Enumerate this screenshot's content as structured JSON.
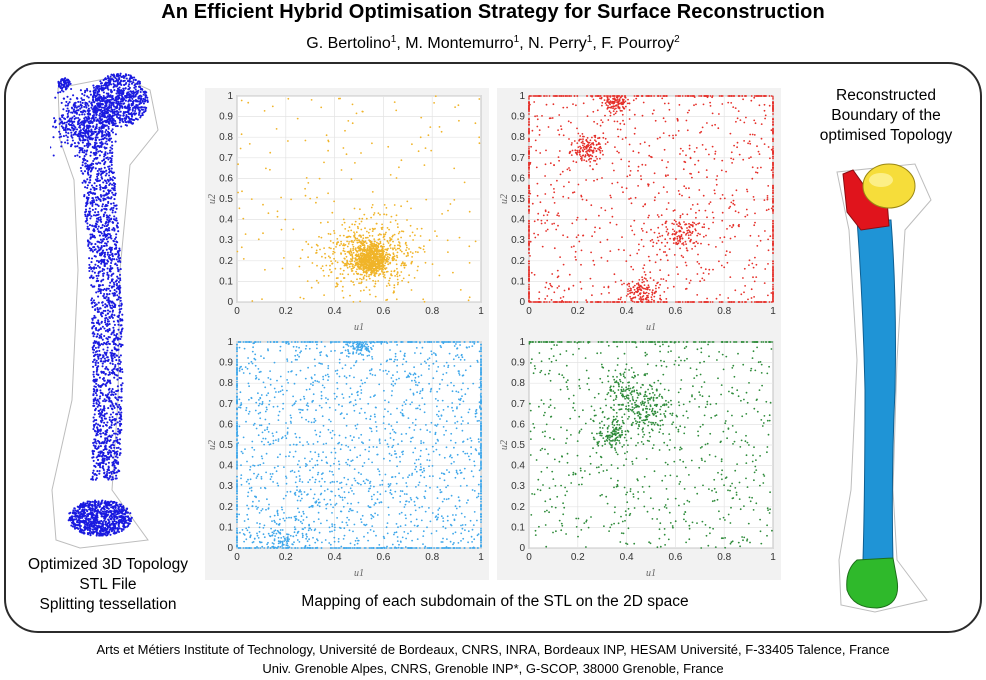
{
  "header": {
    "title": "An Efficient Hybrid Optimisation Strategy for Surface Reconstruction",
    "authors": [
      {
        "name": "G. Bertolino",
        "aff": "1"
      },
      {
        "name": "M. Montemurro",
        "aff": "1"
      },
      {
        "name": "N. Perry",
        "aff": "1"
      },
      {
        "name": "F. Pourroy",
        "aff": "2"
      }
    ]
  },
  "captions": {
    "left": [
      "Optimized 3D Topology",
      "STL File",
      "Splitting tessellation"
    ],
    "middle": "Mapping of each subdomain of the STL on the 2D space",
    "right": [
      "Reconstructed",
      "Boundary of the",
      "optimised Topology"
    ]
  },
  "affiliations": [
    "Arts et Métiers Institute of Technology, Université de Bordeaux, CNRS, INRA, Bordeaux INP, HESAM Université, F-33405 Talence, France",
    "Univ. Grenoble Alpes, CNRS, Grenoble INP*, G-SCOP, 38000 Grenoble, France"
  ],
  "chart_data": [
    {
      "type": "scatter",
      "color": "#f0b429",
      "xlabel": "u1",
      "ylabel": "u2",
      "xlim": [
        0,
        1
      ],
      "ylim": [
        0,
        1
      ],
      "xticks": [
        "0",
        "0.2",
        "0.4",
        "0.6",
        "0.8",
        "1"
      ],
      "yticks": [
        "0",
        "0.1",
        "0.2",
        "0.3",
        "0.4",
        "0.5",
        "0.6",
        "0.7",
        "0.8",
        "0.9",
        "1"
      ],
      "clusters": [
        {
          "x": 0.54,
          "y": 0.22,
          "sd": 0.09
        },
        {
          "x": 0.55,
          "y": 0.21,
          "sd": 0.035
        }
      ],
      "grid": true
    },
    {
      "type": "scatter",
      "color": "#e5302a",
      "xlabel": "u1",
      "ylabel": "u2",
      "xlim": [
        0,
        1
      ],
      "ylim": [
        0,
        1
      ],
      "xticks": [
        "0",
        "0.2",
        "0.4",
        "0.6",
        "0.8",
        "1"
      ],
      "yticks": [
        "0",
        "0.1",
        "0.2",
        "0.3",
        "0.4",
        "0.5",
        "0.6",
        "0.7",
        "0.8",
        "0.9",
        "1"
      ],
      "clusters": [
        {
          "x": 0.24,
          "y": 0.74,
          "sd": 0.03
        },
        {
          "x": 0.46,
          "y": 0.05,
          "sd": 0.04
        },
        {
          "x": 0.36,
          "y": 0.97,
          "sd": 0.03
        },
        {
          "x": 0.62,
          "y": 0.33,
          "sd": 0.05
        }
      ],
      "border": true,
      "grid": true
    },
    {
      "type": "scatter",
      "color": "#3fa7ea",
      "xlabel": "u1",
      "ylabel": "u2",
      "xlim": [
        0,
        1
      ],
      "ylim": [
        0,
        1
      ],
      "xticks": [
        "0",
        "0.2",
        "0.4",
        "0.6",
        "0.8",
        "1"
      ],
      "yticks": [
        "0",
        "0.1",
        "0.2",
        "0.3",
        "0.4",
        "0.5",
        "0.6",
        "0.7",
        "0.8",
        "0.9",
        "1"
      ],
      "clusters": [
        {
          "x": 0.5,
          "y": 0.99,
          "sd": 0.03
        },
        {
          "x": 0.2,
          "y": 0.03,
          "sd": 0.05
        }
      ],
      "border": true,
      "grid": true
    },
    {
      "type": "scatter",
      "color": "#2e8b3a",
      "xlabel": "u1",
      "ylabel": "u2",
      "xlim": [
        0,
        1
      ],
      "ylim": [
        0,
        1
      ],
      "xticks": [
        "0",
        "0.2",
        "0.4",
        "0.6",
        "0.8",
        "1"
      ],
      "yticks": [
        "0",
        "0.1",
        "0.2",
        "0.3",
        "0.4",
        "0.5",
        "0.6",
        "0.7",
        "0.8",
        "0.9",
        "1"
      ],
      "clusters": [
        {
          "x": 0.4,
          "y": 0.76,
          "sd": 0.06
        },
        {
          "x": 0.34,
          "y": 0.55,
          "sd": 0.04
        },
        {
          "x": 0.5,
          "y": 0.66,
          "sd": 0.05
        }
      ],
      "border_top": true,
      "grid": true
    }
  ],
  "colors": {
    "mesh_blue": "#1a1adf",
    "bone_blue": "#1f94d6",
    "bone_red": "#e0141c",
    "bone_yellow": "#f6dd3a",
    "bone_green": "#2fb92b"
  }
}
